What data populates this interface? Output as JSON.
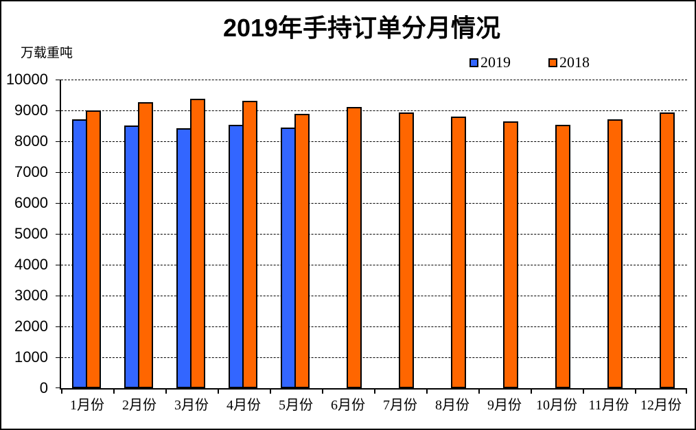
{
  "chart_data": {
    "type": "bar",
    "title": "2019年手持订单分月情况",
    "ylabel": "万载重吨",
    "xlabel": "",
    "categories": [
      "1月份",
      "2月份",
      "3月份",
      "4月份",
      "5月份",
      "6月份",
      "7月份",
      "8月份",
      "9月份",
      "10月份",
      "11月份",
      "12月份"
    ],
    "series": [
      {
        "name": "2019",
        "color": "#3366FF",
        "values": [
          8720,
          8510,
          8420,
          8540,
          8440,
          null,
          null,
          null,
          null,
          null,
          null,
          null
        ]
      },
      {
        "name": "2018",
        "color": "#FF6600",
        "values": [
          9000,
          9270,
          9370,
          9310,
          8890,
          9100,
          8930,
          8800,
          8650,
          8540,
          8720,
          8930
        ]
      }
    ],
    "ylim": [
      0,
      10000
    ],
    "ytick_step": 1000,
    "yticks": [
      0,
      1000,
      2000,
      3000,
      4000,
      5000,
      6000,
      7000,
      8000,
      9000,
      10000
    ],
    "grid": "horizontal-dashed",
    "legend_position": "top-right",
    "bar_border_color": "#000000",
    "background_color": "#FFFFFF"
  }
}
